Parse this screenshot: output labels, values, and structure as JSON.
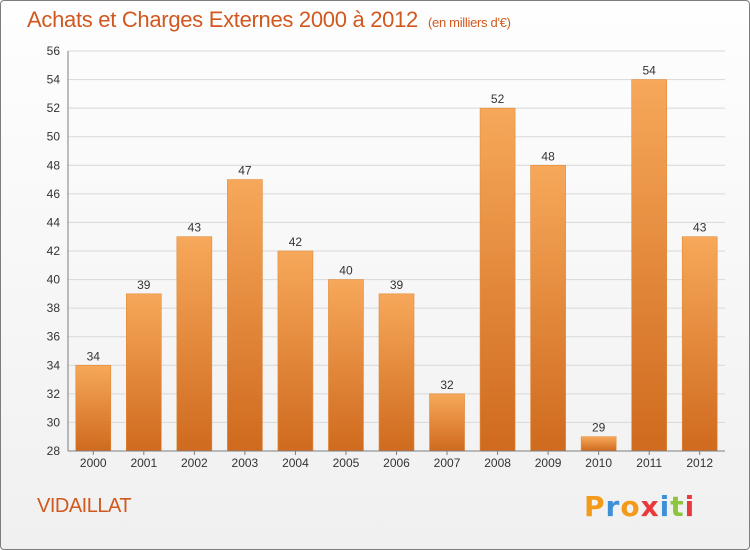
{
  "header": {
    "title": "Achats et Charges Externes 2000 à 2012",
    "unit": "(en milliers d'€)"
  },
  "footer": {
    "place": "VIDAILLAT",
    "brand": "Proxiti"
  },
  "colors": {
    "title": "#d1581e",
    "bar_light": "#f7a85a",
    "bar_dark": "#cf6a1e",
    "grid": "#d8d8d8",
    "axis": "#7d7d7d",
    "brand_letters": [
      "#f39a1a",
      "#3d8fd6",
      "#f39a1a",
      "#e83a3a",
      "#3d8fd6",
      "#8cc63f",
      "#e83a3a"
    ]
  },
  "chart_data": {
    "type": "bar",
    "title": "Achats et Charges Externes 2000 à 2012",
    "subtitle": "(en milliers d'€)",
    "categories": [
      "2000",
      "2001",
      "2002",
      "2003",
      "2004",
      "2005",
      "2006",
      "2007",
      "2008",
      "2009",
      "2010",
      "2011",
      "2012"
    ],
    "values": [
      34,
      39,
      43,
      47,
      42,
      40,
      39,
      32,
      52,
      48,
      29,
      54,
      43
    ],
    "ylim": [
      28,
      56
    ],
    "yticks": [
      28,
      30,
      32,
      34,
      36,
      38,
      40,
      42,
      44,
      46,
      48,
      50,
      52,
      54,
      56
    ],
    "grid": true,
    "data_labels": true,
    "legend": "none"
  }
}
